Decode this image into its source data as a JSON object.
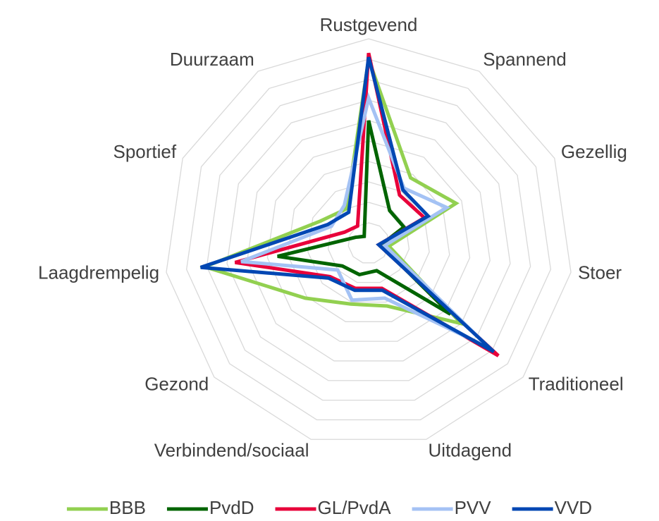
{
  "chart_data": {
    "type": "radar",
    "categories": [
      "Rustgevend",
      "Spannend",
      "Gezellig",
      "Stoer",
      "Traditioneel",
      "Uitdagend",
      "Verbindend/sociaal",
      "Gezond",
      "Laagdrempelig",
      "Sportief",
      "Duurzaam"
    ],
    "series": [
      {
        "name": "BBB",
        "color": "#92d050",
        "values": [
          90,
          38,
          47,
          10,
          60,
          32,
          31,
          41,
          81,
          26,
          20
        ]
      },
      {
        "name": "PvdD",
        "color": "#006400",
        "values": [
          60,
          19,
          19,
          6,
          53,
          14,
          16,
          17,
          45,
          7,
          4
        ]
      },
      {
        "name": "GL/PvdA",
        "color": "#e8003a",
        "values": [
          93,
          28,
          30,
          5,
          84,
          23,
          23,
          25,
          66,
          13,
          10
        ]
      },
      {
        "name": "PVV",
        "color": "#a4c2f4",
        "values": [
          71,
          32,
          42,
          8,
          78,
          28,
          29,
          20,
          63,
          20,
          22
        ]
      },
      {
        "name": "VVD",
        "color": "#0047b3",
        "values": [
          91,
          31,
          32,
          5,
          81,
          24,
          24,
          26,
          83,
          22,
          18
        ]
      }
    ],
    "ylim": [
      0,
      100
    ],
    "yticks": [
      0,
      10,
      20,
      30,
      40,
      50,
      60,
      70,
      80,
      90,
      100
    ],
    "grid": true,
    "legend": "bottom"
  }
}
